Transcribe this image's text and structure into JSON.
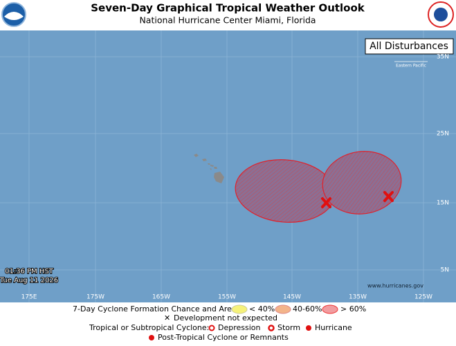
{
  "header": {
    "title": "Seven-Day Graphical Tropical Weather Outlook",
    "subtitle": "National Hurricane Center  Miami, Florida"
  },
  "map": {
    "panel_label": "All Disturbances",
    "basin_label": "Eastern Pacific",
    "lat_labels": [
      "35N",
      "25N",
      "15N",
      "5N"
    ],
    "lon_labels": [
      "175E",
      "175W",
      "165W",
      "155W",
      "145W",
      "135W",
      "125W"
    ],
    "timestamp": {
      "time": "01:36 PM HST",
      "date": "Tue Aug 11 2026"
    },
    "website": "www.hurricanes.gov"
  },
  "legend": {
    "formation_title": "7-Day Cyclone Formation Chance and Area:",
    "low": "< 40%",
    "medium": "40-60%",
    "high": "> 60%",
    "not_expected": "Development not expected",
    "cyclone_title": "Tropical or Subtropical Cyclone:",
    "depression": "Depression",
    "storm": "Storm",
    "hurricane": "Hurricane",
    "post_tropical": "Post-Tropical Cyclone or Remnants"
  }
}
